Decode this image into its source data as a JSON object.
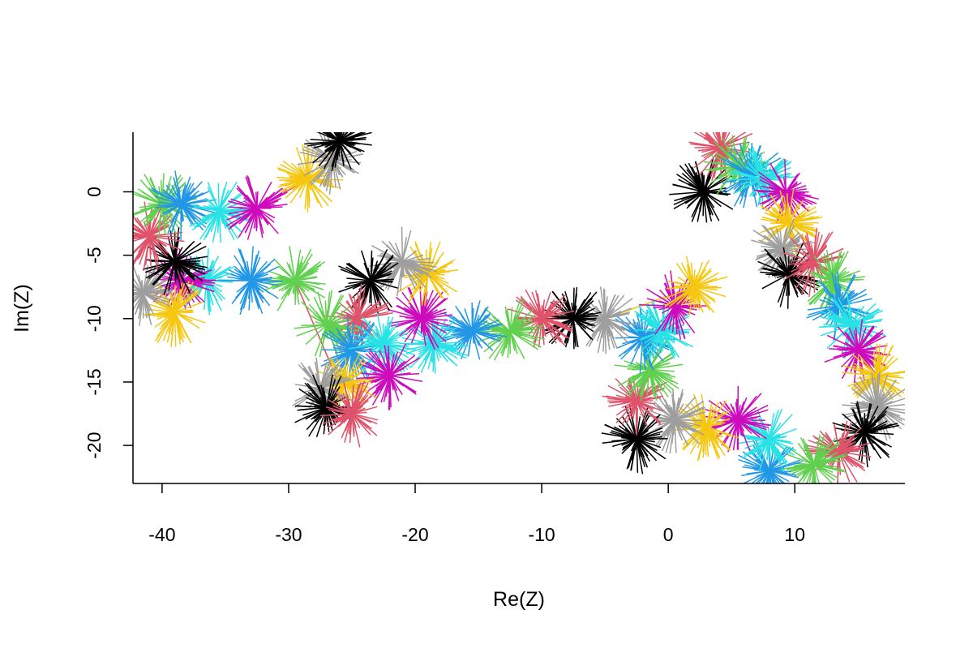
{
  "chart_data": {
    "type": "scatter",
    "title": "",
    "xlabel": "Re(Z)",
    "ylabel": "Im(Z)",
    "xlim": [
      -42.3,
      18.7
    ],
    "ylim": [
      -23,
      4.7
    ],
    "grid": false,
    "legend": "none",
    "x_ticks": [
      -40,
      -30,
      -20,
      -10,
      0,
      10
    ],
    "y_ticks": [
      -20,
      -15,
      -10,
      -5,
      0
    ],
    "x_tick_labels": [
      "-40",
      "-30",
      "-20",
      "-10",
      "0",
      "10"
    ],
    "y_tick_labels": [
      "-20",
      "-15",
      "-10",
      "-5",
      "0"
    ],
    "start_point": {
      "x": 2.8,
      "y": 0
    },
    "colors": [
      "#000000",
      "#DF536B",
      "#61D04F",
      "#2297E6",
      "#28E2E5",
      "#CD0BBC",
      "#F5C710",
      "#9E9E9E"
    ],
    "walk": [
      {
        "x": 2.8,
        "y": 0.0
      },
      {
        "x": 4.2,
        "y": 3.5
      },
      {
        "x": 5.5,
        "y": 2.0
      },
      {
        "x": 6.5,
        "y": 1.3
      },
      {
        "x": 7.5,
        "y": 1.0
      },
      {
        "x": 9.3,
        "y": 0.0
      },
      {
        "x": 9.5,
        "y": -2.5
      },
      {
        "x": 9.0,
        "y": -4.5
      },
      {
        "x": 9.5,
        "y": -6.5
      },
      {
        "x": 11.5,
        "y": -5.5
      },
      {
        "x": 13.0,
        "y": -7.0
      },
      {
        "x": 13.5,
        "y": -9.0
      },
      {
        "x": 14.5,
        "y": -10.5
      },
      {
        "x": 15.0,
        "y": -12.5
      },
      {
        "x": 16.5,
        "y": -14.5
      },
      {
        "x": 16.5,
        "y": -17.0
      },
      {
        "x": 15.5,
        "y": -19.0
      },
      {
        "x": 13.5,
        "y": -20.5
      },
      {
        "x": 11.5,
        "y": -21.5
      },
      {
        "x": 8.0,
        "y": -22.0
      },
      {
        "x": 8.0,
        "y": -19.5
      },
      {
        "x": 5.5,
        "y": -18.0
      },
      {
        "x": 3.0,
        "y": -18.5
      },
      {
        "x": 0.5,
        "y": -18.0
      },
      {
        "x": -2.5,
        "y": -19.5
      },
      {
        "x": -2.5,
        "y": -16.5
      },
      {
        "x": -1.5,
        "y": -14.0
      },
      {
        "x": -2.0,
        "y": -11.5
      },
      {
        "x": -0.5,
        "y": -11.0
      },
      {
        "x": 0.5,
        "y": -9.0
      },
      {
        "x": 2.0,
        "y": -7.5
      },
      {
        "x": -5.0,
        "y": -10.0
      },
      {
        "x": -7.5,
        "y": -10.0
      },
      {
        "x": -10.0,
        "y": -10.0
      },
      {
        "x": -12.5,
        "y": -11.0
      },
      {
        "x": -15.5,
        "y": -11.0
      },
      {
        "x": -18.5,
        "y": -12.0
      },
      {
        "x": -19.5,
        "y": -10.0
      },
      {
        "x": -19.0,
        "y": -6.5
      },
      {
        "x": -21.0,
        "y": -5.5
      },
      {
        "x": -23.5,
        "y": -7.0
      },
      {
        "x": -24.5,
        "y": -10.0
      },
      {
        "x": -27.0,
        "y": -10.5
      },
      {
        "x": -25.0,
        "y": -12.5
      },
      {
        "x": -22.5,
        "y": -12.0
      },
      {
        "x": -22.0,
        "y": -14.5
      },
      {
        "x": -25.5,
        "y": -15.0
      },
      {
        "x": -27.5,
        "y": -15.5
      },
      {
        "x": -27.0,
        "y": -17.0
      },
      {
        "x": -25.0,
        "y": -17.5
      },
      {
        "x": -29.5,
        "y": -7.0
      },
      {
        "x": -33.0,
        "y": -7.0
      },
      {
        "x": -36.5,
        "y": -7.0
      },
      {
        "x": -38.5,
        "y": -7.0
      },
      {
        "x": -39.0,
        "y": -9.5
      },
      {
        "x": -41.5,
        "y": -8.0
      },
      {
        "x": -39.0,
        "y": -5.5
      },
      {
        "x": -41.0,
        "y": -3.5
      },
      {
        "x": -40.0,
        "y": -1.0
      },
      {
        "x": -38.5,
        "y": -1.0
      },
      {
        "x": -35.5,
        "y": -1.5
      },
      {
        "x": -32.5,
        "y": -1.3
      },
      {
        "x": -28.5,
        "y": 1.0
      },
      {
        "x": -26.5,
        "y": 2.5
      },
      {
        "x": -26.0,
        "y": 4.0
      }
    ]
  }
}
